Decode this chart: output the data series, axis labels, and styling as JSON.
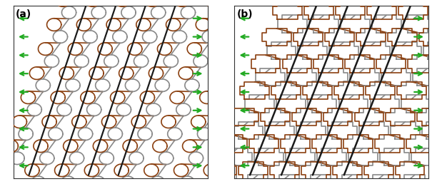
{
  "fig_width": 6.19,
  "fig_height": 2.58,
  "dpi": 100,
  "bg_color": "#ffffff",
  "border_color": "#000000",
  "label_a": "(a)",
  "label_b": "(b)",
  "label_fontsize": 10,
  "label_fontweight": "bold",
  "brown_color": "#8B4010",
  "gray_color": "#888888",
  "black_color": "#111111",
  "arrow_color": "#22aa22",
  "arrow_lw": 1.6,
  "struct_lw": 1.2,
  "n_arrows_per_side": 9
}
